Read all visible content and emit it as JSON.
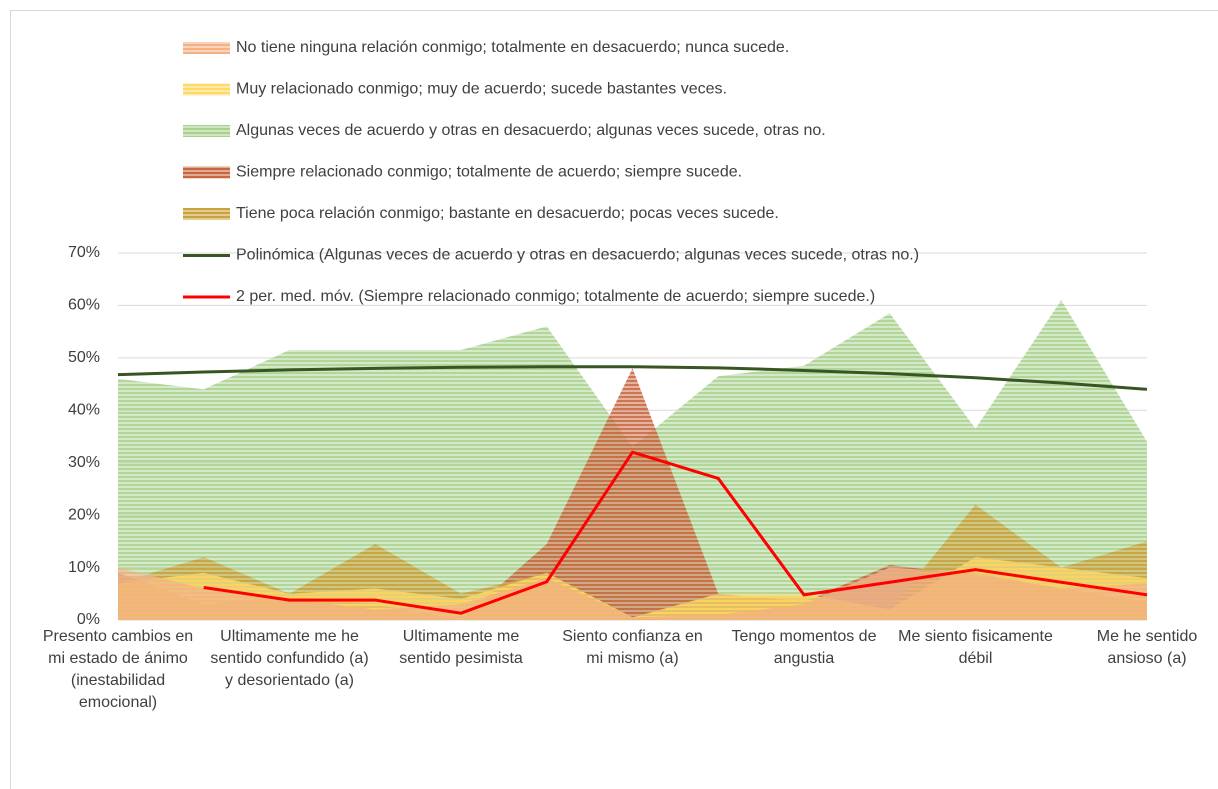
{
  "chart_data": {
    "type": "area",
    "categories": [
      "Presento cambios en mi estado de ánimo (inestabilidad emocional)",
      null,
      "Ultimamente me he sentido confundido (a) y desorientado (a)",
      null,
      "Ultimamente me sentido pesimista",
      null,
      "Siento confianza en mi mismo (a)",
      null,
      "Tengo momentos de angustia",
      null,
      "Me siento fisicamente débil",
      null,
      "Me he sentido ansioso (a)"
    ],
    "series": [
      {
        "name": "No tiene ninguna relación conmigo; totalmente en desacuerdo; nunca sucede.",
        "color": "#f4b183",
        "values": [
          10,
          6,
          4,
          2,
          3,
          8,
          0.5,
          1,
          3,
          10,
          9,
          6,
          7
        ]
      },
      {
        "name": "Muy relacionado conmigo; muy de acuerdo; sucede bastantes veces.",
        "color": "#ffd966",
        "values": [
          7,
          9,
          5,
          6,
          4,
          9,
          0.5,
          5,
          5,
          2,
          12,
          10,
          8
        ]
      },
      {
        "name": "Algunas veces de acuerdo y otras en desacuerdo; algunas veces sucede, otras no.",
        "color": "#a9d18e",
        "values": [
          46,
          44,
          51.5,
          51.5,
          51.5,
          56,
          33,
          46.5,
          48.5,
          58.5,
          36.5,
          61,
          34
        ]
      },
      {
        "name": "Siempre relacionado conmigo; totalmente de acuerdo; siempre sucede.",
        "color": "#c8663f",
        "values": [
          9,
          3,
          4.5,
          3,
          0,
          14.5,
          48,
          5,
          3.5,
          10.5,
          8.5,
          6,
          3.5
        ]
      },
      {
        "name": "Tiene poca relación conmigo; bastante en desacuerdo; pocas veces sucede.",
        "color": "#c9a23a",
        "values": [
          7,
          12,
          5,
          14.5,
          5,
          9,
          0.5,
          4.5,
          4.5,
          2,
          22,
          10,
          15
        ]
      },
      {
        "name": "Polinómica (Algunas veces de acuerdo y otras en desacuerdo; algunas veces sucede, otras no.)",
        "color": "#375623",
        "line": true,
        "values": [
          46.8,
          47.3,
          47.7,
          48,
          48.2,
          48.3,
          48.3,
          48.1,
          47.6,
          47,
          46.2,
          45.2,
          44
        ]
      },
      {
        "name": "2 per. med. móv. (Siempre relacionado conmigo; totalmente de acuerdo; siempre sucede.)",
        "color": "#ff0000",
        "line": true,
        "values": [
          null,
          6.2,
          3.8,
          3.8,
          1.3,
          7.3,
          32,
          27,
          4.8,
          7.2,
          9.6,
          7.2,
          4.8
        ]
      }
    ],
    "ylim": [
      0,
      70
    ],
    "yticks": [
      {
        "value": 0,
        "label": "0%"
      },
      {
        "value": 10,
        "label": "10%"
      },
      {
        "value": 20,
        "label": "20%"
      },
      {
        "value": 30,
        "label": "30%"
      },
      {
        "value": 40,
        "label": "40%"
      },
      {
        "value": 50,
        "label": "50%"
      },
      {
        "value": 60,
        "label": "60%"
      },
      {
        "value": 70,
        "label": "70%"
      }
    ],
    "grid": true
  }
}
